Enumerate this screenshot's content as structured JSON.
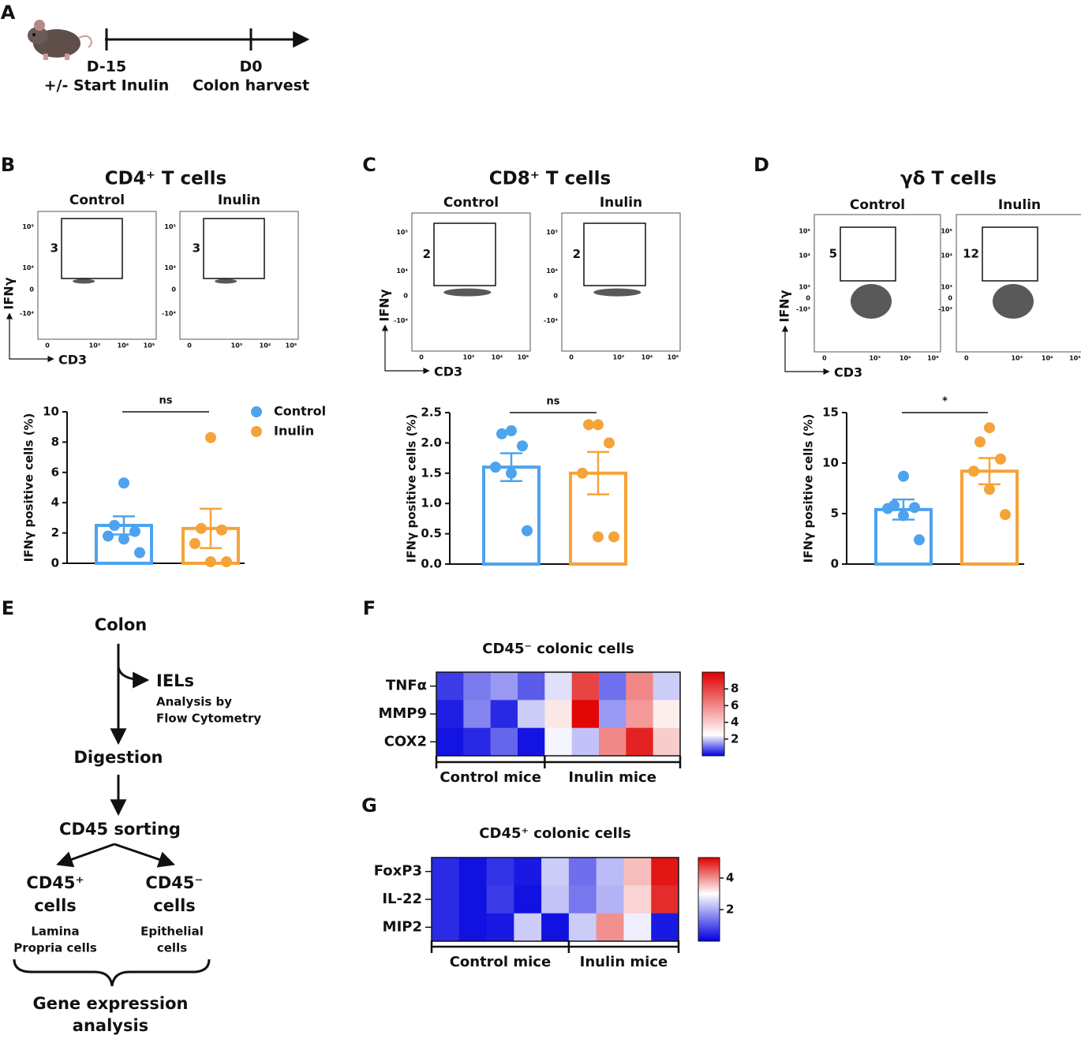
{
  "panel_labels": [
    "A",
    "B",
    "C",
    "D",
    "E",
    "F",
    "G"
  ],
  "timeline": {
    "points": [
      {
        "day": "D-15",
        "label": "+/- Start Inulin"
      },
      {
        "day": "D0",
        "label": "Colon harvest"
      }
    ]
  },
  "flow_panels": [
    {
      "title": "CD4⁺ T cells",
      "y_label": "IFNγ",
      "x_label": "CD3",
      "y_ticks": [
        "10⁵",
        "10⁴",
        "0",
        "-10⁴"
      ],
      "x_ticks": [
        "0",
        "10³",
        "10⁴",
        "10⁵"
      ],
      "plots": [
        {
          "name": "Control",
          "gate": 3
        },
        {
          "name": "Inulin",
          "gate": 3
        }
      ]
    },
    {
      "title": "CD8⁺ T cells",
      "y_label": "IFNγ",
      "x_label": "CD3",
      "y_ticks": [
        "10⁵",
        "10⁴",
        "0",
        "-10⁴"
      ],
      "x_ticks": [
        "0",
        "10³",
        "10⁴",
        "10⁵"
      ],
      "plots": [
        {
          "name": "Control",
          "gate": 2
        },
        {
          "name": "Inulin",
          "gate": 2
        }
      ]
    },
    {
      "title": "γδ T cells",
      "y_label": "IFNγ",
      "x_label": "CD3",
      "y_ticks": [
        "10⁵",
        "10⁴",
        "10³",
        "0",
        "-10³"
      ],
      "x_ticks": [
        "0",
        "10³",
        "10⁴",
        "10⁵"
      ],
      "plots": [
        {
          "name": "Control",
          "gate": 5
        },
        {
          "name": "Inulin",
          "gate": 12
        }
      ]
    }
  ],
  "chart_data": [
    {
      "type": "bar",
      "y_label": "IFNγ positive cells (%)",
      "ylim": [
        0,
        10
      ],
      "yticks": [
        0,
        2,
        4,
        6,
        8,
        10
      ],
      "annotation": "ns",
      "legend": "top-right",
      "series": [
        {
          "name": "Control",
          "color": "#4da3ef",
          "values": [
            2.5
          ],
          "error": [
            0.6
          ],
          "points": [
            5.3,
            2.5,
            2.1,
            1.8,
            1.6,
            0.7
          ]
        },
        {
          "name": "Inulin",
          "color": "#f6a33a",
          "values": [
            2.3
          ],
          "error": [
            1.3
          ],
          "points": [
            8.3,
            2.3,
            2.2,
            1.3,
            0.1,
            0.1
          ]
        }
      ]
    },
    {
      "type": "bar",
      "y_label": "IFNγ positive cells (%)",
      "ylim": [
        0,
        2.5
      ],
      "yticks": [
        {
          "value": 0,
          "label": "0.0"
        },
        0.5,
        {
          "value": 1,
          "label": "1.0"
        },
        1.5,
        {
          "value": 2,
          "label": "2.0"
        },
        2.5
      ],
      "annotation": "ns",
      "series": [
        {
          "color": "#4da3ef",
          "values": [
            1.6
          ],
          "error": [
            0.23
          ],
          "points": [
            2.2,
            2.15,
            1.95,
            1.6,
            1.5,
            0.55
          ]
        },
        {
          "color": "#f6a33a",
          "values": [
            1.5
          ],
          "error": [
            0.35
          ],
          "points": [
            2.3,
            2.3,
            2.0,
            1.5,
            0.45,
            0.45
          ]
        }
      ]
    },
    {
      "type": "bar",
      "y_label": "IFNγ positive cells (%)",
      "ylim": [
        0,
        15
      ],
      "yticks": [
        0,
        5,
        10,
        15
      ],
      "annotation": "*",
      "series": [
        {
          "color": "#4da3ef",
          "values": [
            5.4
          ],
          "error": [
            1.0
          ],
          "points": [
            8.7,
            5.8,
            5.6,
            5.5,
            4.8,
            2.4
          ]
        },
        {
          "color": "#f6a33a",
          "values": [
            9.2
          ],
          "error": [
            1.3
          ],
          "points": [
            13.5,
            12.1,
            10.4,
            9.2,
            7.4,
            4.9
          ]
        }
      ]
    },
    {
      "type": "heatmap",
      "title": "CD45⁻ colonic cells",
      "rows": [
        "TNFα",
        "MMP9",
        "COX2"
      ],
      "groups": [
        {
          "label": "Control mice",
          "count": 4
        },
        {
          "label": "Inulin mice",
          "count": 5
        }
      ],
      "values": [
        [
          0.6,
          1.2,
          1.5,
          0.9,
          2.2,
          8,
          1.1,
          6,
          2.0
        ],
        [
          0.3,
          1.3,
          0.4,
          2.0,
          3.2,
          9.8,
          1.5,
          5.5,
          3.0
        ],
        [
          0.2,
          0.4,
          1.0,
          0.2,
          2.4,
          1.9,
          6,
          9,
          4
        ]
      ],
      "zlim": [
        0,
        10
      ],
      "zticks": [
        2,
        4,
        6,
        8
      ],
      "colorscale": [
        [
          0,
          "#0000e0"
        ],
        [
          2.5,
          "#ffffff"
        ],
        [
          10,
          "#e00000"
        ]
      ]
    },
    {
      "type": "heatmap",
      "title": "CD45⁺ colonic cells",
      "rows": [
        "FoxP3",
        "IL-22",
        "MIP2"
      ],
      "groups": [
        {
          "label": "Control mice",
          "count": 5
        },
        {
          "label": "Inulin mice",
          "count": 4
        }
      ],
      "values": [
        [
          0.5,
          0.2,
          0.6,
          0.3,
          2.4,
          1.3,
          2.2,
          3.6,
          5.1
        ],
        [
          0.5,
          0.2,
          0.7,
          0.2,
          2.3,
          1.4,
          2.1,
          3.4,
          4.9
        ],
        [
          0.5,
          0.2,
          0.3,
          2.4,
          0.2,
          2.4,
          4.0,
          2.8,
          0.3
        ]
      ],
      "zlim": [
        0,
        5.3
      ],
      "zticks": [
        2,
        4
      ],
      "colorscale": [
        [
          0,
          "#0000e0"
        ],
        [
          3,
          "#ffffff"
        ],
        [
          5.3,
          "#e00000"
        ]
      ]
    }
  ],
  "diagram": {
    "steps": [
      "Colon",
      "Digestion",
      "CD45 sorting"
    ],
    "side": {
      "title": "IELs",
      "note": [
        "Analysis by",
        "Flow Cytometry"
      ]
    },
    "branches": [
      {
        "title": "CD45⁺",
        "sub": "cells",
        "note": [
          "Lamina",
          "Propria cells"
        ]
      },
      {
        "title": "CD45⁻",
        "sub": "cells",
        "note": [
          "Epithelial",
          "cells"
        ]
      }
    ],
    "outcome": [
      "Gene expression",
      "analysis"
    ]
  }
}
